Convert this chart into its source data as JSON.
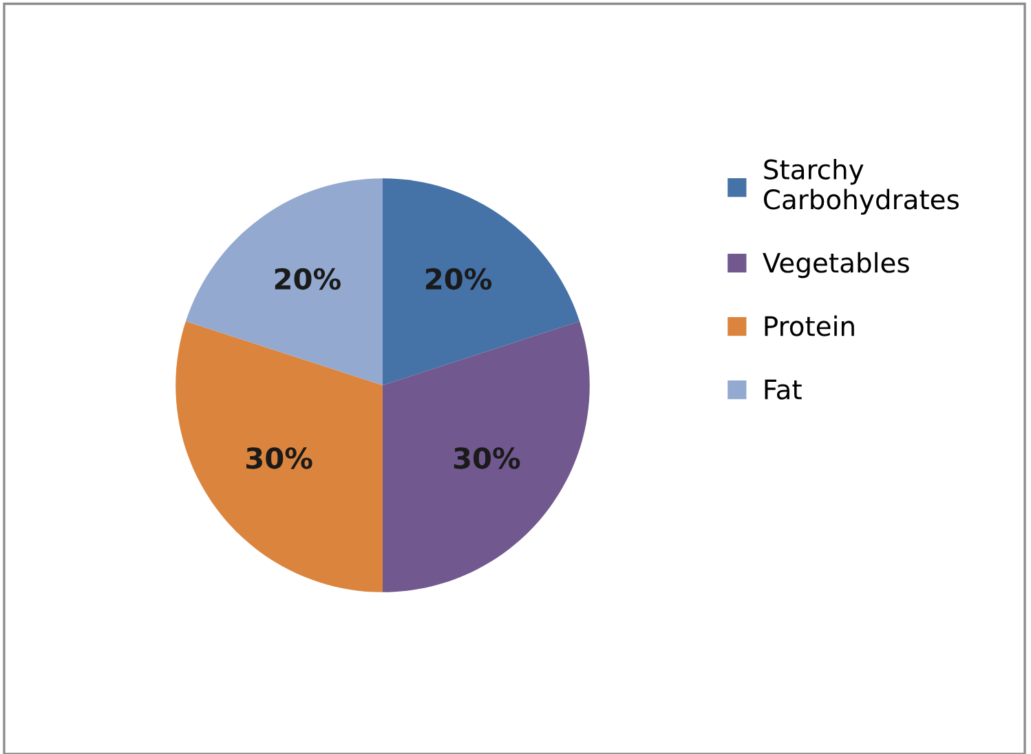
{
  "chart_data": {
    "type": "pie",
    "categories": [
      "Starchy Carbohydrates",
      "Vegetables",
      "Protein",
      "Fat"
    ],
    "values": [
      20,
      30,
      30,
      20
    ],
    "colors": [
      "#4572a7",
      "#71588f",
      "#db843d",
      "#93a9cf"
    ],
    "value_labels": [
      "20%",
      "30%",
      "30%",
      "20%"
    ],
    "legend": "right"
  }
}
